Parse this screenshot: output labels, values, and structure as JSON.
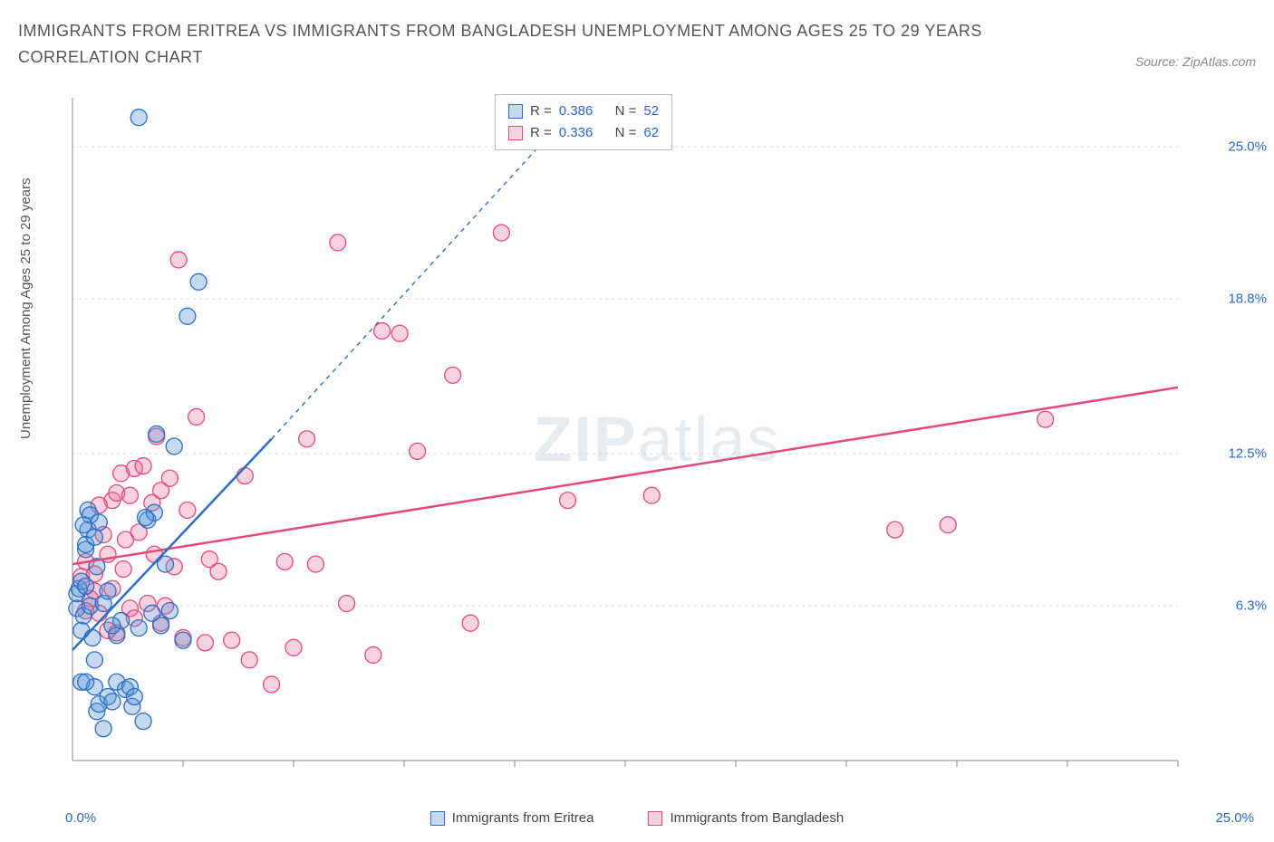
{
  "title": "IMMIGRANTS FROM ERITREA VS IMMIGRANTS FROM BANGLADESH UNEMPLOYMENT AMONG AGES 25 TO 29 YEARS CORRELATION CHART",
  "source": "Source: ZipAtlas.com",
  "watermark_a": "ZIP",
  "watermark_b": "atlas",
  "ylabel": "Unemployment Among Ages 25 to 29 years",
  "x_start": "0.0%",
  "x_end": "25.0%",
  "plot": {
    "xmin": 0,
    "xmax": 25,
    "ymin": 0,
    "ymax": 27,
    "grid_color": "#dddddd",
    "axis_color": "#888888",
    "background": "#ffffff",
    "marker_radius": 9,
    "marker_opacity": 0.55
  },
  "y_ticks": [
    {
      "v": 6.3,
      "label": "6.3%"
    },
    {
      "v": 12.5,
      "label": "12.5%"
    },
    {
      "v": 18.8,
      "label": "18.8%"
    },
    {
      "v": 25.0,
      "label": "25.0%"
    }
  ],
  "x_tick_positions": [
    2.5,
    5.0,
    7.5,
    10.0,
    12.5,
    15.0,
    17.5,
    20.0,
    22.5,
    25.0
  ],
  "series": [
    {
      "key": "eritrea",
      "label": "Immigrants from Eritrea",
      "color": "#5a93d6",
      "fill": "rgba(90,147,214,0.35)",
      "stroke": "#2b6fc4",
      "R": "0.386",
      "N": "52",
      "trend": {
        "x1": 0,
        "y1": 4.5,
        "x2": 4.5,
        "y2": 13.1,
        "dash_x2": 11.3,
        "dash_y2": 26.5
      },
      "points": [
        [
          0.1,
          6.2
        ],
        [
          0.1,
          6.8
        ],
        [
          0.15,
          7.0
        ],
        [
          0.2,
          7.3
        ],
        [
          0.2,
          5.3
        ],
        [
          0.25,
          5.9
        ],
        [
          0.3,
          7.1
        ],
        [
          0.3,
          8.6
        ],
        [
          0.35,
          9.4
        ],
        [
          0.35,
          10.2
        ],
        [
          0.4,
          10.0
        ],
        [
          0.4,
          6.3
        ],
        [
          0.45,
          5.0
        ],
        [
          0.5,
          4.1
        ],
        [
          0.5,
          3.0
        ],
        [
          0.55,
          2.0
        ],
        [
          0.6,
          2.3
        ],
        [
          0.7,
          1.3
        ],
        [
          0.8,
          2.6
        ],
        [
          0.9,
          2.4
        ],
        [
          1.0,
          3.2
        ],
        [
          1.0,
          5.1
        ],
        [
          1.1,
          5.7
        ],
        [
          1.2,
          2.9
        ],
        [
          1.3,
          3.0
        ],
        [
          1.35,
          2.2
        ],
        [
          1.4,
          2.6
        ],
        [
          1.5,
          5.4
        ],
        [
          1.6,
          1.6
        ],
        [
          1.7,
          9.8
        ],
        [
          1.8,
          6.0
        ],
        [
          1.9,
          13.3
        ],
        [
          2.0,
          5.5
        ],
        [
          2.1,
          8.0
        ],
        [
          2.2,
          6.1
        ],
        [
          2.3,
          12.8
        ],
        [
          1.85,
          10.1
        ],
        [
          2.5,
          4.9
        ],
        [
          0.2,
          3.2
        ],
        [
          0.3,
          3.2
        ],
        [
          0.3,
          8.8
        ],
        [
          1.65,
          9.9
        ],
        [
          0.6,
          9.7
        ],
        [
          1.5,
          26.2
        ],
        [
          2.85,
          19.5
        ],
        [
          2.6,
          18.1
        ],
        [
          0.7,
          6.4
        ],
        [
          0.8,
          6.9
        ],
        [
          0.5,
          9.1
        ],
        [
          0.9,
          5.5
        ],
        [
          0.25,
          9.6
        ],
        [
          0.55,
          7.9
        ]
      ]
    },
    {
      "key": "bangladesh",
      "label": "Immigrants from Bangladesh",
      "color": "#e86a92",
      "fill": "rgba(232,106,146,0.30)",
      "stroke": "#e3497b",
      "R": "0.336",
      "N": "62",
      "trend": {
        "x1": 0,
        "y1": 8.0,
        "x2": 25,
        "y2": 15.2
      },
      "points": [
        [
          0.2,
          7.5
        ],
        [
          0.3,
          8.1
        ],
        [
          0.4,
          6.6
        ],
        [
          0.5,
          6.9
        ],
        [
          0.5,
          7.6
        ],
        [
          0.7,
          9.2
        ],
        [
          0.8,
          8.4
        ],
        [
          0.9,
          10.6
        ],
        [
          1.0,
          10.9
        ],
        [
          1.1,
          11.7
        ],
        [
          1.3,
          6.2
        ],
        [
          1.4,
          11.9
        ],
        [
          1.5,
          9.3
        ],
        [
          1.6,
          12.0
        ],
        [
          1.8,
          10.5
        ],
        [
          1.85,
          8.4
        ],
        [
          2.0,
          5.6
        ],
        [
          2.1,
          6.3
        ],
        [
          2.2,
          11.5
        ],
        [
          2.3,
          7.9
        ],
        [
          2.4,
          20.4
        ],
        [
          2.5,
          5.0
        ],
        [
          2.8,
          14.0
        ],
        [
          3.0,
          4.8
        ],
        [
          3.1,
          8.2
        ],
        [
          3.3,
          7.7
        ],
        [
          3.6,
          4.9
        ],
        [
          3.9,
          11.6
        ],
        [
          4.0,
          4.1
        ],
        [
          4.5,
          3.1
        ],
        [
          4.8,
          8.1
        ],
        [
          5.0,
          4.6
        ],
        [
          5.3,
          13.1
        ],
        [
          5.5,
          8.0
        ],
        [
          6.0,
          21.1
        ],
        [
          6.2,
          6.4
        ],
        [
          6.8,
          4.3
        ],
        [
          7.0,
          17.5
        ],
        [
          7.4,
          17.4
        ],
        [
          7.8,
          12.6
        ],
        [
          8.6,
          15.7
        ],
        [
          9.0,
          5.6
        ],
        [
          9.7,
          21.5
        ],
        [
          11.2,
          10.6
        ],
        [
          13.1,
          10.8
        ],
        [
          18.6,
          9.4
        ],
        [
          19.8,
          9.6
        ],
        [
          22.0,
          13.9
        ],
        [
          0.3,
          6.1
        ],
        [
          0.6,
          6.0
        ],
        [
          0.6,
          10.4
        ],
        [
          0.8,
          5.3
        ],
        [
          1.0,
          5.2
        ],
        [
          1.2,
          9.0
        ],
        [
          1.3,
          10.8
        ],
        [
          1.7,
          6.4
        ],
        [
          1.9,
          13.2
        ],
        [
          2.0,
          11.0
        ],
        [
          2.6,
          10.2
        ],
        [
          0.9,
          7.0
        ],
        [
          1.15,
          7.8
        ],
        [
          1.4,
          5.8
        ]
      ]
    }
  ],
  "stats_labels": {
    "R": "R =",
    "N": "N ="
  }
}
